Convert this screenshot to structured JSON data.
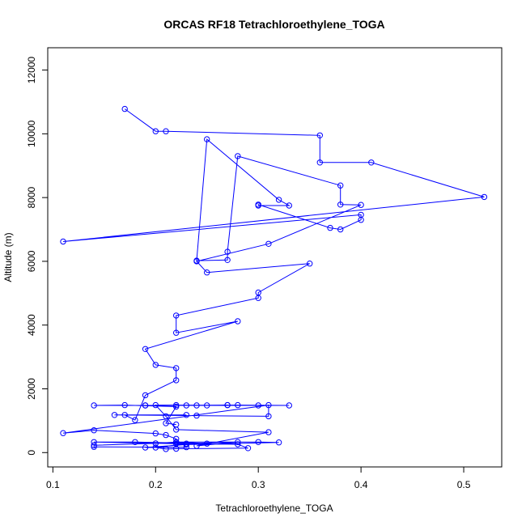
{
  "chart_data": {
    "type": "line",
    "title": "ORCAS RF18 Tetrachloroethylene_TOGA",
    "xlabel": "Tetrachloroethylene_TOGA",
    "ylabel": "Altitude (m)",
    "xlim": [
      0.095,
      0.537
    ],
    "ylim": [
      -450,
      12700
    ],
    "x_ticks": [
      0.1,
      0.2,
      0.3,
      0.4,
      0.5
    ],
    "x_tick_labels": [
      "0.1",
      "0.2",
      "0.3",
      "0.4",
      "0.5"
    ],
    "y_ticks": [
      0,
      2000,
      4000,
      6000,
      8000,
      10000,
      12000
    ],
    "y_tick_labels": [
      "0",
      "2000",
      "4000",
      "6000",
      "8000",
      "10000",
      "12000"
    ],
    "grid": false,
    "color": "#0000ff",
    "marker": "open-circle",
    "series": [
      {
        "x": [
          0.17,
          0.2,
          0.21,
          0.36,
          0.36,
          0.41,
          0.52,
          0.11,
          0.4,
          0.4,
          0.38,
          0.37,
          0.3,
          0.3,
          0.33,
          0.32,
          0.25,
          0.24,
          0.27,
          0.27,
          0.28,
          0.38,
          0.38,
          0.4,
          0.31,
          0.24,
          0.25,
          0.35,
          0.3,
          0.3,
          0.22,
          0.22,
          0.28,
          0.19,
          0.2,
          0.22,
          0.22,
          0.19,
          0.18,
          0.17,
          0.23,
          0.16,
          0.24,
          0.31,
          0.31,
          0.11,
          0.14,
          0.2,
          0.21,
          0.22,
          0.22,
          0.3,
          0.32,
          0.23,
          0.19,
          0.23,
          0.14,
          0.14,
          0.2,
          0.22,
          0.25,
          0.18,
          0.14,
          0.22,
          0.28,
          0.29,
          0.22,
          0.21,
          0.2,
          0.23,
          0.28,
          0.24,
          0.31,
          0.22,
          0.21,
          0.2,
          0.22,
          0.33,
          0.28,
          0.23,
          0.24,
          0.27,
          0.27,
          0.25,
          0.19,
          0.19,
          0.3,
          0.14,
          0.17,
          0.22,
          0.21,
          0.22
        ],
        "y": [
          10780,
          10080,
          10080,
          9950,
          9100,
          9100,
          8020,
          6620,
          7460,
          7300,
          7000,
          7050,
          7780,
          7750,
          7750,
          7930,
          9830,
          6020,
          6040,
          6300,
          9300,
          8380,
          7780,
          7770,
          6550,
          6000,
          5650,
          5930,
          5020,
          4850,
          4300,
          3760,
          4120,
          3250,
          2750,
          2650,
          2270,
          1800,
          1020,
          1180,
          1180,
          1180,
          1160,
          1140,
          1490,
          610,
          700,
          600,
          550,
          430,
          330,
          330,
          320,
          250,
          160,
          170,
          180,
          230,
          290,
          330,
          280,
          330,
          330,
          280,
          260,
          140,
          120,
          110,
          160,
          280,
          330,
          210,
          640,
          720,
          1140,
          1490,
          1490,
          1480,
          1490,
          1480,
          1480,
          1490,
          1490,
          1480,
          1480,
          1480,
          1480,
          1480,
          1490,
          1440,
          920,
          880
        ]
      }
    ]
  }
}
